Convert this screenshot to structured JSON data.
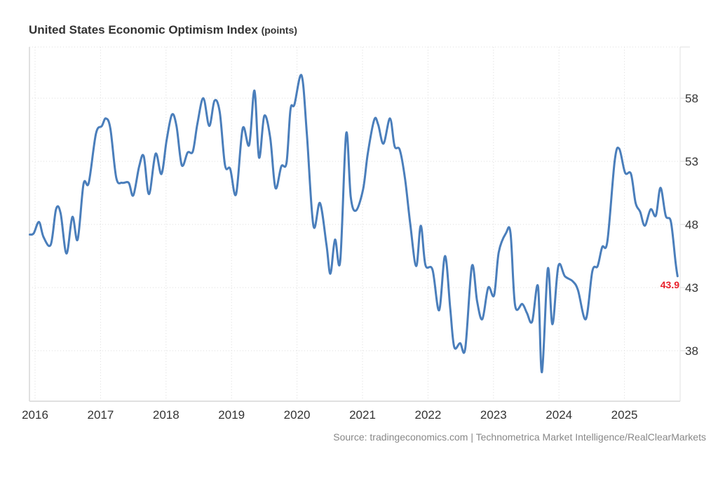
{
  "chart_data": {
    "type": "line",
    "title": "United States Economic Optimism Index",
    "unit_label": "(points)",
    "xlabel": "",
    "ylabel": "",
    "x_tick_labels": [
      "2016",
      "2017",
      "2018",
      "2019",
      "2020",
      "2021",
      "2022",
      "2023",
      "2024",
      "2025"
    ],
    "y_ticks": [
      38,
      43,
      48,
      53,
      58
    ],
    "ylim": [
      35.3,
      62.2
    ],
    "xlim": [
      2015.915,
      2025.84
    ],
    "grid": true,
    "y_axis_position": "right",
    "last_value_label": "43.9",
    "last_value_color": "#e8202a",
    "line_color": "#4a7ebb",
    "series": [
      {
        "name": "Economic Optimism Index",
        "x": [
          2015.92,
          2015.98,
          2016.06,
          2016.13,
          2016.24,
          2016.32,
          2016.39,
          2016.48,
          2016.57,
          2016.65,
          2016.74,
          2016.82,
          2016.93,
          2017.02,
          2017.08,
          2017.15,
          2017.24,
          2017.33,
          2017.43,
          2017.5,
          2017.59,
          2017.66,
          2017.74,
          2017.84,
          2017.93,
          2018.01,
          2018.09,
          2018.16,
          2018.24,
          2018.33,
          2018.41,
          2018.48,
          2018.57,
          2018.66,
          2018.74,
          2018.82,
          2018.9,
          2018.98,
          2019.07,
          2019.17,
          2019.27,
          2019.35,
          2019.42,
          2019.5,
          2019.59,
          2019.67,
          2019.76,
          2019.84,
          2019.9,
          2019.96,
          2020.07,
          2020.15,
          2020.25,
          2020.35,
          2020.45,
          2020.51,
          2020.58,
          2020.66,
          2020.75,
          2020.82,
          2020.9,
          2021.01,
          2021.08,
          2021.18,
          2021.24,
          2021.32,
          2021.42,
          2021.49,
          2021.57,
          2021.65,
          2021.73,
          2021.82,
          2021.89,
          2021.96,
          2022.07,
          2022.17,
          2022.26,
          2022.34,
          2022.4,
          2022.49,
          2022.57,
          2022.67,
          2022.75,
          2022.83,
          2022.92,
          2023.01,
          2023.08,
          2023.19,
          2023.26,
          2023.33,
          2023.44,
          2023.51,
          2023.59,
          2023.68,
          2023.74,
          2023.83,
          2023.9,
          2023.99,
          2024.09,
          2024.21,
          2024.29,
          2024.41,
          2024.51,
          2024.59,
          2024.66,
          2024.74,
          2024.85,
          2024.92,
          2025.01,
          2025.1,
          2025.17,
          2025.24,
          2025.31,
          2025.4,
          2025.48,
          2025.55,
          2025.63,
          2025.71,
          2025.78,
          2025.81
        ],
        "values": [
          47.2,
          47.3,
          48.2,
          47.0,
          46.4,
          49.2,
          48.9,
          45.7,
          48.6,
          46.8,
          51.2,
          51.3,
          55.2,
          55.8,
          56.4,
          55.6,
          51.7,
          51.3,
          51.3,
          50.3,
          52.6,
          53.4,
          50.4,
          53.6,
          52.0,
          54.7,
          56.7,
          55.8,
          52.7,
          53.7,
          53.8,
          56.0,
          58.0,
          55.8,
          57.8,
          56.9,
          52.7,
          52.4,
          50.4,
          55.6,
          54.3,
          58.6,
          53.3,
          56.6,
          54.9,
          50.9,
          52.6,
          52.9,
          57.1,
          57.5,
          59.8,
          55.2,
          47.9,
          49.7,
          46.4,
          44.1,
          46.8,
          45.1,
          55.2,
          50.2,
          49.1,
          50.8,
          53.6,
          56.3,
          55.9,
          54.4,
          56.4,
          54.2,
          53.9,
          51.6,
          48.0,
          44.7,
          47.9,
          44.8,
          44.4,
          41.2,
          45.5,
          41.3,
          38.3,
          38.6,
          38.2,
          44.7,
          41.9,
          40.5,
          43.0,
          42.4,
          45.8,
          47.3,
          47.3,
          41.6,
          41.7,
          41.0,
          40.3,
          43.1,
          36.3,
          44.5,
          40.1,
          44.7,
          43.9,
          43.5,
          42.8,
          40.5,
          44.3,
          44.7,
          46.2,
          46.7,
          53.0,
          54.0,
          52.1,
          52.0,
          49.7,
          49.0,
          47.9,
          49.2,
          48.7,
          50.9,
          48.7,
          48.2,
          45.0,
          43.9
        ]
      }
    ]
  },
  "header": {
    "title": "United States Economic Optimism Index",
    "unit": "(points)"
  },
  "footer": {
    "source": "Source: tradingeconomics.com | Technometrica Market Intelligence/RealClearMarkets"
  }
}
